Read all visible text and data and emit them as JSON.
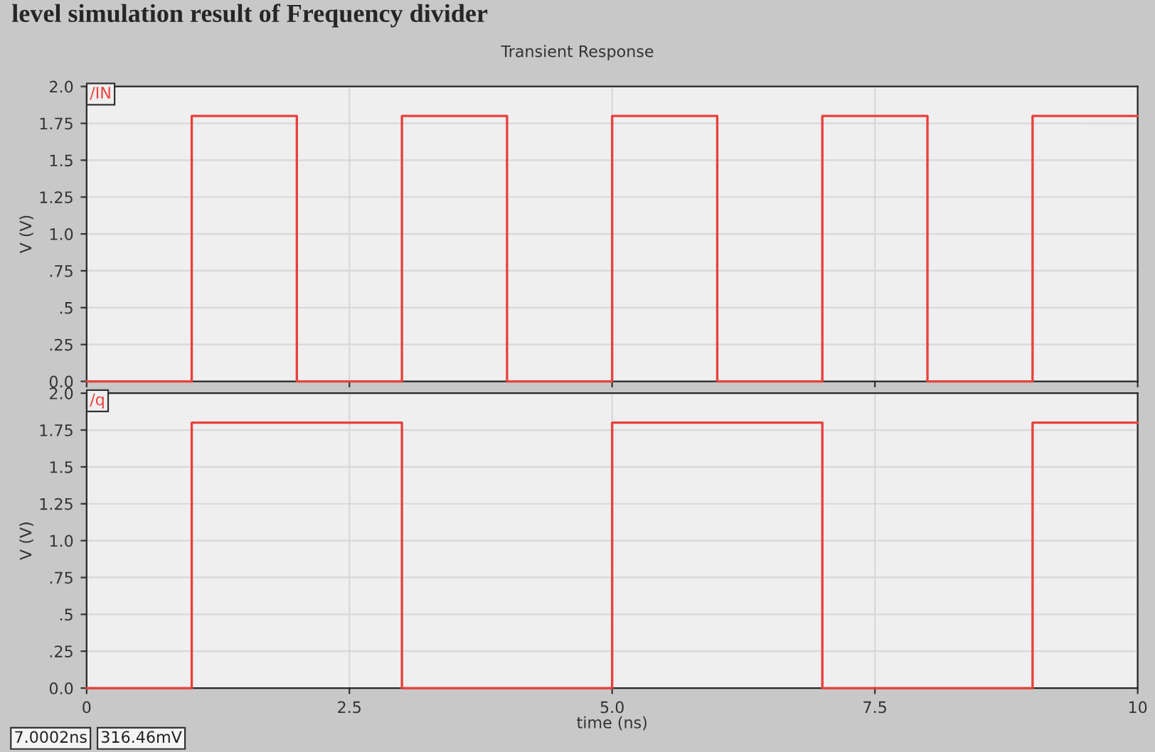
{
  "chart_data": [
    {
      "type": "step",
      "title": "level simulation result of Frequency divider",
      "subtitle": "Transient Response",
      "ylabel": "V (V)",
      "series": [
        {
          "name": "/IN",
          "color": "#e8413c",
          "x": [
            0,
            1,
            2,
            3,
            4,
            5,
            6,
            7,
            8,
            9,
            10
          ],
          "values": [
            0,
            1.8,
            0,
            1.8,
            0,
            1.8,
            0,
            1.8,
            0,
            1.8,
            1.8
          ]
        }
      ],
      "xlim": [
        0,
        10
      ],
      "xticks": [
        0,
        2.5,
        5,
        7.5,
        10
      ],
      "ylim": [
        0,
        2.0
      ],
      "yticks": [
        {
          "value": 0,
          "label": "0.0"
        },
        {
          "value": 0.25,
          "label": ".25"
        },
        {
          "value": 0.5,
          "label": ".5"
        },
        {
          "value": 0.75,
          "label": ".75"
        },
        {
          "value": 1.0,
          "label": "1.0"
        },
        {
          "value": 1.25,
          "label": "1.25"
        },
        {
          "value": 1.5,
          "label": "1.5"
        },
        {
          "value": 1.75,
          "label": "1.75"
        },
        {
          "value": 2.0,
          "label": "2.0"
        }
      ],
      "grid": true,
      "tick_labels": "y",
      "legend": false
    },
    {
      "type": "step",
      "xlabel": "time (ns)",
      "ylabel": "V (V)",
      "annotations": [
        "7.0002ns",
        "316.46mV"
      ],
      "series": [
        {
          "name": "/q",
          "color": "#e8413c",
          "x": [
            0,
            1,
            3,
            5,
            7,
            9,
            10
          ],
          "values": [
            0,
            1.8,
            0,
            1.8,
            0,
            1.8,
            1.8
          ]
        }
      ],
      "xlim": [
        0,
        10
      ],
      "xticks": [
        {
          "value": 0,
          "label": "0"
        },
        {
          "value": 2.5,
          "label": "2.5"
        },
        {
          "value": 5,
          "label": "5.0"
        },
        {
          "value": 7.5,
          "label": "7.5"
        },
        {
          "value": 10,
          "label": "10"
        }
      ],
      "ylim": [
        0,
        2.0
      ],
      "yticks": [
        {
          "value": 0,
          "label": "0.0"
        },
        {
          "value": 0.25,
          "label": ".25"
        },
        {
          "value": 0.5,
          "label": ".5"
        },
        {
          "value": 0.75,
          "label": ".75"
        },
        {
          "value": 1.0,
          "label": "1.0"
        },
        {
          "value": 1.25,
          "label": "1.25"
        },
        {
          "value": 1.5,
          "label": "1.5"
        },
        {
          "value": 1.75,
          "label": "1.75"
        },
        {
          "value": 2.0,
          "label": "2.0"
        }
      ],
      "grid": true,
      "legend": false
    }
  ]
}
